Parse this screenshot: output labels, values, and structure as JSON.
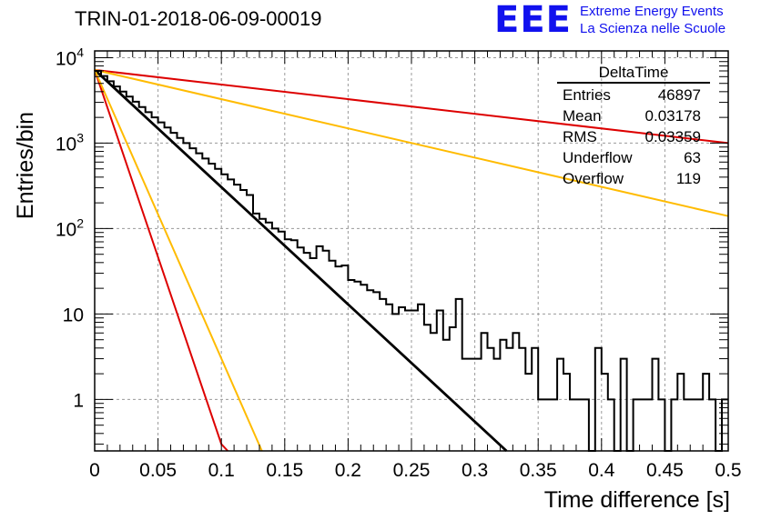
{
  "header": {
    "run_title": "TRIN-01-2018-06-09-00019",
    "logo_text": "EEE",
    "logo_line1": "Extreme Energy Events",
    "logo_line2": "La Scienza nelle Scuole"
  },
  "stats_box": {
    "title": "DeltaTime",
    "rows": [
      {
        "label": "Entries",
        "value": "46897"
      },
      {
        "label": "Mean",
        "value": "0.03178"
      },
      {
        "label": "RMS",
        "value": "0.03359"
      },
      {
        "label": "Underflow",
        "value": "63"
      },
      {
        "label": "Overflow",
        "value": "119"
      }
    ]
  },
  "colors": {
    "histogram": "#000000",
    "fit": "#000000",
    "red_curves": "#dd0000",
    "yellow_curves": "#ffbb00",
    "grid": "#9a9a9a"
  },
  "chart_data": {
    "type": "line",
    "title": "TRIN-01-2018-06-09-00019",
    "xlabel": "Time difference [s]",
    "ylabel": "Entries/bin",
    "xlim": [
      0,
      0.5
    ],
    "ylim": [
      0.25,
      12000
    ],
    "y_scale": "log",
    "grid": true,
    "legend_position": "top-right",
    "x_ticks": [
      "0",
      "0.05",
      "0.1",
      "0.15",
      "0.2",
      "0.25",
      "0.3",
      "0.35",
      "0.4",
      "0.45",
      "0.5"
    ],
    "y_ticks": [
      {
        "value": 1,
        "label": "1"
      },
      {
        "value": 10,
        "label": "10"
      },
      {
        "value": 100,
        "label": "10^2"
      },
      {
        "value": 1000,
        "label": "10^3"
      },
      {
        "value": 10000,
        "label": "10^4"
      }
    ],
    "histogram": {
      "bin_width": 0.005,
      "values": [
        7000,
        6100,
        5300,
        4600,
        4000,
        3500,
        3050,
        2650,
        2300,
        2000,
        1750,
        1520,
        1320,
        1150,
        1000,
        870,
        760,
        660,
        575,
        500,
        432,
        376,
        327,
        283,
        247,
        150,
        130,
        118,
        100,
        92,
        75,
        73,
        60,
        52,
        45,
        62,
        55,
        42,
        36,
        37,
        25,
        24,
        22,
        19,
        18,
        15,
        13,
        10,
        12,
        11,
        11,
        13,
        7.5,
        6,
        11,
        5,
        7,
        15,
        3,
        3,
        3,
        6,
        4,
        3,
        5,
        4,
        6,
        4,
        2,
        4,
        1,
        1,
        1,
        3,
        2,
        1,
        1,
        1,
        0.25,
        4,
        2,
        1,
        0.25,
        3,
        0.25,
        1,
        1,
        1,
        3,
        1,
        0.25,
        1,
        2,
        1,
        1,
        1,
        2,
        1,
        0.25,
        1
      ]
    },
    "series": [
      {
        "name": "",
        "color": "#000000",
        "role": "fit",
        "x": [
          0,
          0.325
        ],
        "y": [
          7200,
          0.25
        ]
      },
      {
        "name": "",
        "color": "#dd0000",
        "role": "slow",
        "x": [
          0,
          0.5
        ],
        "y": [
          7200,
          1000
        ]
      },
      {
        "name": "",
        "color": "#ffbb00",
        "role": "slow",
        "x": [
          0,
          0.5
        ],
        "y": [
          7200,
          140
        ]
      },
      {
        "name": "",
        "color": "#dd0000",
        "role": "fast",
        "x": [
          0,
          0.1,
          0.105
        ],
        "y": [
          7200,
          0.3,
          0.25
        ]
      },
      {
        "name": "",
        "color": "#ffbb00",
        "role": "fast",
        "x": [
          0,
          0.132
        ],
        "y": [
          7200,
          0.25
        ]
      }
    ]
  }
}
